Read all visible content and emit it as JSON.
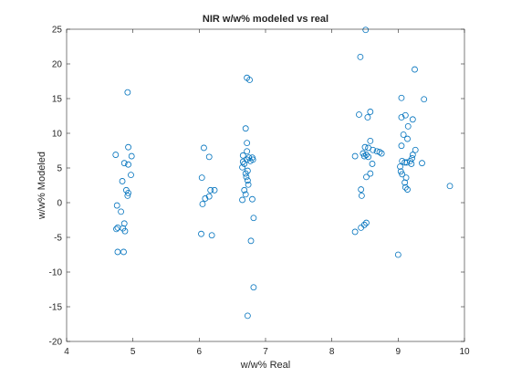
{
  "chart_data": {
    "type": "scatter",
    "title": "NIR w/w% modeled vs real",
    "xlabel": "w/w% Real",
    "ylabel": "w/w% Modeled",
    "xlim": [
      4,
      10
    ],
    "ylim": [
      -20,
      25
    ],
    "xticks": [
      4,
      5,
      6,
      7,
      8,
      9,
      10
    ],
    "yticks": [
      -20,
      -15,
      -10,
      -5,
      0,
      5,
      10,
      15,
      20,
      25
    ],
    "grid": false,
    "box": true,
    "marker": "circle",
    "marker_color": "#0072BD",
    "points": [
      {
        "x": 4.92,
        "y": 15.9
      },
      {
        "x": 4.93,
        "y": 8.0
      },
      {
        "x": 4.74,
        "y": 6.9
      },
      {
        "x": 4.98,
        "y": 6.7
      },
      {
        "x": 4.87,
        "y": 5.7
      },
      {
        "x": 4.93,
        "y": 5.5
      },
      {
        "x": 4.97,
        "y": 4.0
      },
      {
        "x": 4.84,
        "y": 3.1
      },
      {
        "x": 4.9,
        "y": 1.8
      },
      {
        "x": 4.93,
        "y": 1.4
      },
      {
        "x": 4.92,
        "y": 1.0
      },
      {
        "x": 4.76,
        "y": -0.4
      },
      {
        "x": 4.82,
        "y": -1.3
      },
      {
        "x": 4.87,
        "y": -3.0
      },
      {
        "x": 4.77,
        "y": -3.6
      },
      {
        "x": 4.75,
        "y": -3.8
      },
      {
        "x": 4.85,
        "y": -3.7
      },
      {
        "x": 4.88,
        "y": -4.1
      },
      {
        "x": 4.77,
        "y": -7.1
      },
      {
        "x": 4.86,
        "y": -7.1
      },
      {
        "x": 6.07,
        "y": 7.9
      },
      {
        "x": 6.15,
        "y": 6.6
      },
      {
        "x": 6.04,
        "y": 3.6
      },
      {
        "x": 6.17,
        "y": 1.8
      },
      {
        "x": 6.23,
        "y": 1.8
      },
      {
        "x": 6.15,
        "y": 0.9
      },
      {
        "x": 6.09,
        "y": 0.6
      },
      {
        "x": 6.05,
        "y": -0.2
      },
      {
        "x": 6.03,
        "y": -4.5
      },
      {
        "x": 6.19,
        "y": -4.7
      },
      {
        "x": 6.72,
        "y": 18.0
      },
      {
        "x": 6.76,
        "y": 17.7
      },
      {
        "x": 6.7,
        "y": 10.7
      },
      {
        "x": 6.72,
        "y": 8.6
      },
      {
        "x": 6.72,
        "y": 7.4
      },
      {
        "x": 6.66,
        "y": 6.8
      },
      {
        "x": 6.75,
        "y": 6.5
      },
      {
        "x": 6.8,
        "y": 6.5
      },
      {
        "x": 6.72,
        "y": 6.2
      },
      {
        "x": 6.77,
        "y": 6.0
      },
      {
        "x": 6.81,
        "y": 6.2
      },
      {
        "x": 6.66,
        "y": 5.9
      },
      {
        "x": 6.68,
        "y": 5.6
      },
      {
        "x": 6.65,
        "y": 5.1
      },
      {
        "x": 6.73,
        "y": 4.6
      },
      {
        "x": 6.7,
        "y": 4.2
      },
      {
        "x": 6.71,
        "y": 3.7
      },
      {
        "x": 6.73,
        "y": 3.2
      },
      {
        "x": 6.74,
        "y": 2.6
      },
      {
        "x": 6.68,
        "y": 1.8
      },
      {
        "x": 6.7,
        "y": 1.2
      },
      {
        "x": 6.65,
        "y": 0.4
      },
      {
        "x": 6.8,
        "y": 0.5
      },
      {
        "x": 6.82,
        "y": -2.2
      },
      {
        "x": 6.78,
        "y": -5.5
      },
      {
        "x": 6.82,
        "y": -12.2
      },
      {
        "x": 6.73,
        "y": -16.3
      },
      {
        "x": 8.51,
        "y": 24.9
      },
      {
        "x": 8.43,
        "y": 21.0
      },
      {
        "x": 8.58,
        "y": 13.1
      },
      {
        "x": 8.41,
        "y": 12.7
      },
      {
        "x": 8.54,
        "y": 12.3
      },
      {
        "x": 8.58,
        "y": 8.9
      },
      {
        "x": 8.5,
        "y": 8.0
      },
      {
        "x": 8.55,
        "y": 7.9
      },
      {
        "x": 8.62,
        "y": 7.6
      },
      {
        "x": 8.68,
        "y": 7.4
      },
      {
        "x": 8.72,
        "y": 7.3
      },
      {
        "x": 8.75,
        "y": 7.1
      },
      {
        "x": 8.47,
        "y": 7.1
      },
      {
        "x": 8.52,
        "y": 6.9
      },
      {
        "x": 8.49,
        "y": 6.7
      },
      {
        "x": 8.55,
        "y": 6.6
      },
      {
        "x": 8.35,
        "y": 6.7
      },
      {
        "x": 8.61,
        "y": 5.6
      },
      {
        "x": 8.58,
        "y": 4.2
      },
      {
        "x": 8.52,
        "y": 3.7
      },
      {
        "x": 8.44,
        "y": 1.9
      },
      {
        "x": 8.45,
        "y": 1.0
      },
      {
        "x": 8.52,
        "y": -2.9
      },
      {
        "x": 8.49,
        "y": -3.2
      },
      {
        "x": 8.44,
        "y": -3.6
      },
      {
        "x": 8.35,
        "y": -4.2
      },
      {
        "x": 9.25,
        "y": 19.2
      },
      {
        "x": 9.05,
        "y": 15.1
      },
      {
        "x": 9.39,
        "y": 14.9
      },
      {
        "x": 9.11,
        "y": 12.6
      },
      {
        "x": 9.05,
        "y": 12.3
      },
      {
        "x": 9.22,
        "y": 12.0
      },
      {
        "x": 9.15,
        "y": 11.0
      },
      {
        "x": 9.08,
        "y": 9.8
      },
      {
        "x": 9.14,
        "y": 9.2
      },
      {
        "x": 9.05,
        "y": 8.2
      },
      {
        "x": 9.26,
        "y": 7.6
      },
      {
        "x": 9.22,
        "y": 6.9
      },
      {
        "x": 9.21,
        "y": 6.4
      },
      {
        "x": 9.18,
        "y": 6.0
      },
      {
        "x": 9.06,
        "y": 6.0
      },
      {
        "x": 9.1,
        "y": 5.8
      },
      {
        "x": 9.13,
        "y": 5.8
      },
      {
        "x": 9.2,
        "y": 5.6
      },
      {
        "x": 9.36,
        "y": 5.7
      },
      {
        "x": 9.03,
        "y": 5.2
      },
      {
        "x": 9.04,
        "y": 4.5
      },
      {
        "x": 9.06,
        "y": 4.1
      },
      {
        "x": 9.12,
        "y": 3.6
      },
      {
        "x": 9.1,
        "y": 2.9
      },
      {
        "x": 9.11,
        "y": 2.2
      },
      {
        "x": 9.14,
        "y": 1.9
      },
      {
        "x": 9.78,
        "y": 2.4
      },
      {
        "x": 9.0,
        "y": -7.5
      }
    ]
  }
}
